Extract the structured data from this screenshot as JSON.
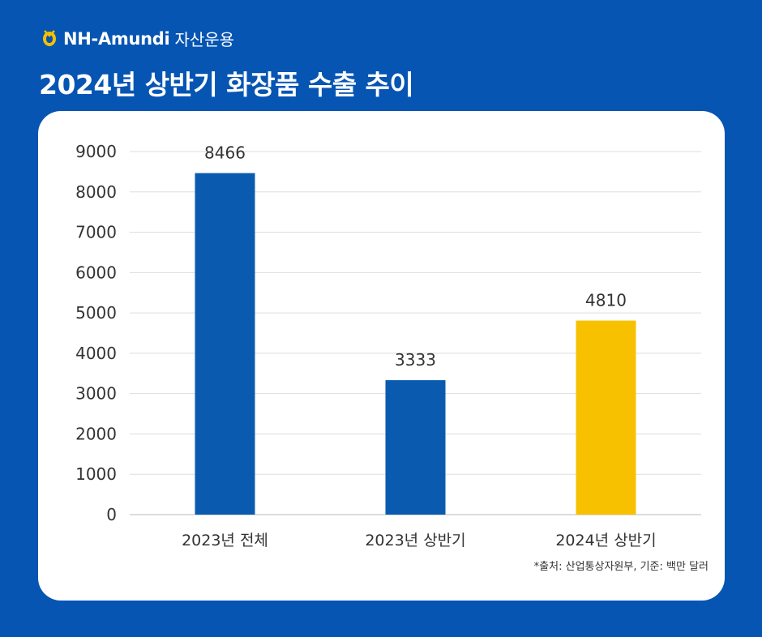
{
  "brand": {
    "name": "NH-Amundi",
    "suffix": "자산운용",
    "logo_icon": "nh-logo-icon",
    "logo_color": "#f6c000"
  },
  "header": {
    "title": "2024년 상반기 화장품 수출 추이"
  },
  "chart_data": {
    "type": "bar",
    "title": "2024년 상반기 화장품 수출 추이",
    "categories": [
      "2023년 전체",
      "2023년 상반기",
      "2024년 상반기"
    ],
    "values": [
      8466,
      3333,
      4810
    ],
    "data_labels": [
      "8466",
      "3333",
      "4810"
    ],
    "colors": [
      "#0a5bb0",
      "#0a5bb0",
      "#f7c100"
    ],
    "xlabel": "",
    "ylabel": "",
    "ylim": [
      0,
      9000
    ],
    "yticks": [
      0,
      1000,
      2000,
      3000,
      4000,
      5000,
      6000,
      7000,
      8000,
      9000
    ],
    "grid": true,
    "legend": "none"
  },
  "footer": {
    "source": "*출처: 산업통상자원부, 기준: 백만 달러"
  },
  "colors": {
    "background": "#0655b3",
    "card": "#ffffff",
    "gridline": "#dddddd",
    "axis_text": "#333333"
  }
}
